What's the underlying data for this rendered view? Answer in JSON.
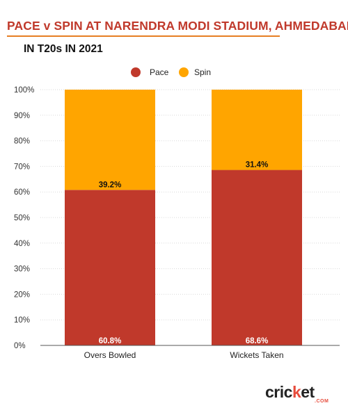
{
  "title": "PACE v SPIN AT NARENDRA MODI STADIUM, AHMEDABAD",
  "subtitle": "IN T20s IN 2021",
  "brand": {
    "name_part1": "cric",
    "name_part2": "k",
    "name_part3": "et",
    "sub": ".COM"
  },
  "colors": {
    "pace": "#c0392b",
    "spin": "#ffa500",
    "title": "#c0392b",
    "accent_line": "#e67e22"
  },
  "chart_data": {
    "type": "bar",
    "stacked": true,
    "categories": [
      "Overs Bowled",
      "Wickets Taken"
    ],
    "series": [
      {
        "name": "Pace",
        "values": [
          60.8,
          68.6
        ],
        "labels": [
          "60.8%",
          "68.6%"
        ],
        "color": "#c0392b"
      },
      {
        "name": "Spin",
        "values": [
          39.2,
          31.4
        ],
        "labels": [
          "39.2%",
          "31.4%"
        ],
        "color": "#ffa500"
      }
    ],
    "ylim": [
      0,
      100
    ],
    "yticks": [
      0,
      10,
      20,
      30,
      40,
      50,
      60,
      70,
      80,
      90,
      100
    ],
    "ytick_labels": [
      "0%",
      "10%",
      "20%",
      "30%",
      "40%",
      "50%",
      "60%",
      "70%",
      "80%",
      "90%",
      "100%"
    ],
    "legend": "top-center",
    "grid": true
  }
}
